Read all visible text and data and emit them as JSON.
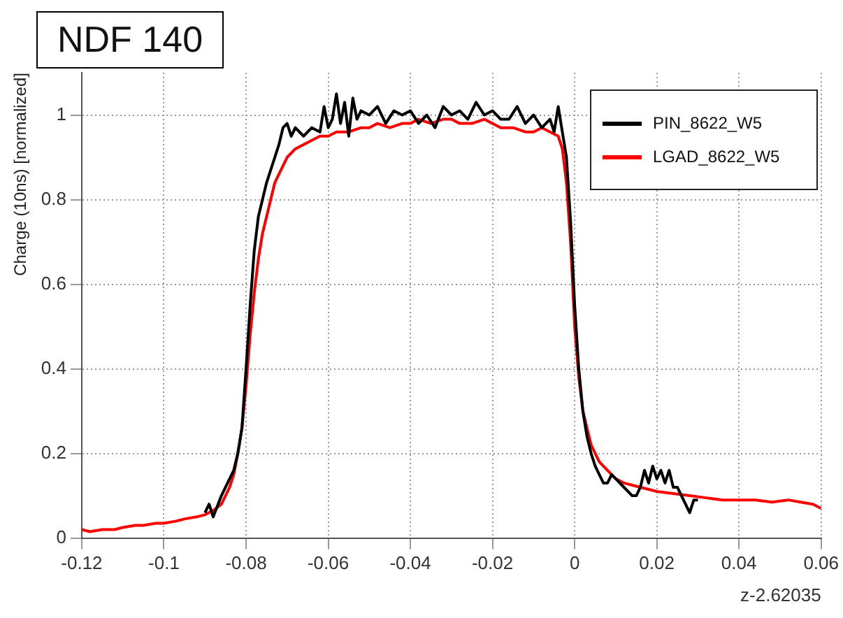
{
  "chart_data": {
    "type": "line",
    "title": "NDF 140",
    "xlabel": "z-2.62035",
    "ylabel": "Charge (10ns) [normalized]",
    "xlim": [
      -0.12,
      0.06
    ],
    "xticks": [
      -0.12,
      -0.1,
      -0.08,
      -0.06,
      -0.04,
      -0.02,
      0,
      0.02,
      0.04,
      0.06
    ],
    "ylim": [
      0,
      1.1
    ],
    "yticks": [
      0,
      0.2,
      0.4,
      0.6,
      0.8,
      1
    ],
    "grid": true,
    "legend": "top right",
    "marker": "none",
    "line_style": "solid",
    "series": [
      {
        "name": "PIN_8622_W5",
        "color": "#000000",
        "x": [
          -0.09,
          -0.089,
          -0.088,
          -0.086,
          -0.085,
          -0.083,
          -0.082,
          -0.081,
          -0.08,
          -0.079,
          -0.078,
          -0.077,
          -0.076,
          -0.075,
          -0.074,
          -0.073,
          -0.072,
          -0.071,
          -0.07,
          -0.069,
          -0.068,
          -0.066,
          -0.064,
          -0.062,
          -0.061,
          -0.06,
          -0.059,
          -0.058,
          -0.057,
          -0.056,
          -0.055,
          -0.054,
          -0.053,
          -0.052,
          -0.05,
          -0.048,
          -0.046,
          -0.044,
          -0.042,
          -0.04,
          -0.038,
          -0.036,
          -0.034,
          -0.032,
          -0.03,
          -0.028,
          -0.026,
          -0.024,
          -0.022,
          -0.02,
          -0.018,
          -0.016,
          -0.014,
          -0.012,
          -0.01,
          -0.008,
          -0.006,
          -0.005,
          -0.004,
          -0.003,
          -0.002,
          -0.001,
          0,
          0.001,
          0.002,
          0.003,
          0.004,
          0.005,
          0.006,
          0.007,
          0.008,
          0.009,
          0.01,
          0.012,
          0.014,
          0.015,
          0.016,
          0.017,
          0.018,
          0.019,
          0.02,
          0.021,
          0.022,
          0.023,
          0.024,
          0.025,
          0.026,
          0.027,
          0.028,
          0.029,
          0.03
        ],
        "values": [
          0.06,
          0.08,
          0.05,
          0.1,
          0.12,
          0.16,
          0.2,
          0.26,
          0.4,
          0.55,
          0.68,
          0.76,
          0.8,
          0.84,
          0.87,
          0.9,
          0.93,
          0.97,
          0.98,
          0.95,
          0.97,
          0.95,
          0.97,
          0.96,
          1.02,
          0.97,
          0.99,
          1.05,
          0.98,
          1.03,
          0.95,
          1.04,
          0.99,
          1.01,
          1.0,
          1.02,
          0.98,
          1.01,
          1.0,
          1.01,
          0.98,
          1.0,
          0.97,
          1.02,
          1.0,
          1.01,
          0.99,
          1.03,
          1.0,
          1.01,
          0.99,
          0.99,
          1.02,
          0.98,
          1.0,
          0.97,
          0.99,
          0.96,
          1.02,
          0.96,
          0.9,
          0.75,
          0.55,
          0.4,
          0.3,
          0.24,
          0.2,
          0.17,
          0.15,
          0.13,
          0.13,
          0.15,
          0.14,
          0.12,
          0.1,
          0.1,
          0.12,
          0.16,
          0.13,
          0.17,
          0.14,
          0.16,
          0.13,
          0.16,
          0.12,
          0.12,
          0.1,
          0.08,
          0.06,
          0.09,
          0.09
        ]
      },
      {
        "name": "LGAD_8622_W5",
        "color": "#ff0000",
        "x": [
          -0.12,
          -0.118,
          -0.115,
          -0.112,
          -0.11,
          -0.107,
          -0.105,
          -0.102,
          -0.1,
          -0.097,
          -0.095,
          -0.092,
          -0.09,
          -0.088,
          -0.086,
          -0.085,
          -0.084,
          -0.083,
          -0.082,
          -0.081,
          -0.08,
          -0.079,
          -0.078,
          -0.077,
          -0.076,
          -0.075,
          -0.074,
          -0.073,
          -0.072,
          -0.071,
          -0.07,
          -0.068,
          -0.066,
          -0.064,
          -0.062,
          -0.06,
          -0.058,
          -0.055,
          -0.052,
          -0.05,
          -0.048,
          -0.045,
          -0.042,
          -0.04,
          -0.038,
          -0.035,
          -0.032,
          -0.03,
          -0.028,
          -0.025,
          -0.022,
          -0.02,
          -0.018,
          -0.015,
          -0.012,
          -0.01,
          -0.008,
          -0.006,
          -0.004,
          -0.003,
          -0.002,
          -0.001,
          0,
          0.001,
          0.002,
          0.003,
          0.004,
          0.006,
          0.008,
          0.01,
          0.012,
          0.014,
          0.016,
          0.018,
          0.02,
          0.024,
          0.028,
          0.032,
          0.036,
          0.04,
          0.044,
          0.048,
          0.052,
          0.055,
          0.058,
          0.06
        ],
        "values": [
          0.02,
          0.015,
          0.02,
          0.02,
          0.025,
          0.03,
          0.03,
          0.035,
          0.035,
          0.04,
          0.045,
          0.05,
          0.055,
          0.065,
          0.08,
          0.1,
          0.12,
          0.15,
          0.2,
          0.26,
          0.36,
          0.48,
          0.58,
          0.66,
          0.72,
          0.76,
          0.8,
          0.84,
          0.86,
          0.88,
          0.9,
          0.92,
          0.93,
          0.94,
          0.95,
          0.95,
          0.96,
          0.96,
          0.97,
          0.97,
          0.98,
          0.97,
          0.98,
          0.98,
          0.99,
          0.98,
          0.99,
          0.99,
          0.98,
          0.98,
          0.99,
          0.98,
          0.97,
          0.97,
          0.96,
          0.96,
          0.97,
          0.96,
          0.95,
          0.92,
          0.84,
          0.7,
          0.5,
          0.38,
          0.3,
          0.26,
          0.22,
          0.18,
          0.16,
          0.14,
          0.13,
          0.125,
          0.12,
          0.115,
          0.11,
          0.105,
          0.1,
          0.095,
          0.09,
          0.09,
          0.09,
          0.085,
          0.09,
          0.085,
          0.08,
          0.07
        ]
      }
    ]
  }
}
